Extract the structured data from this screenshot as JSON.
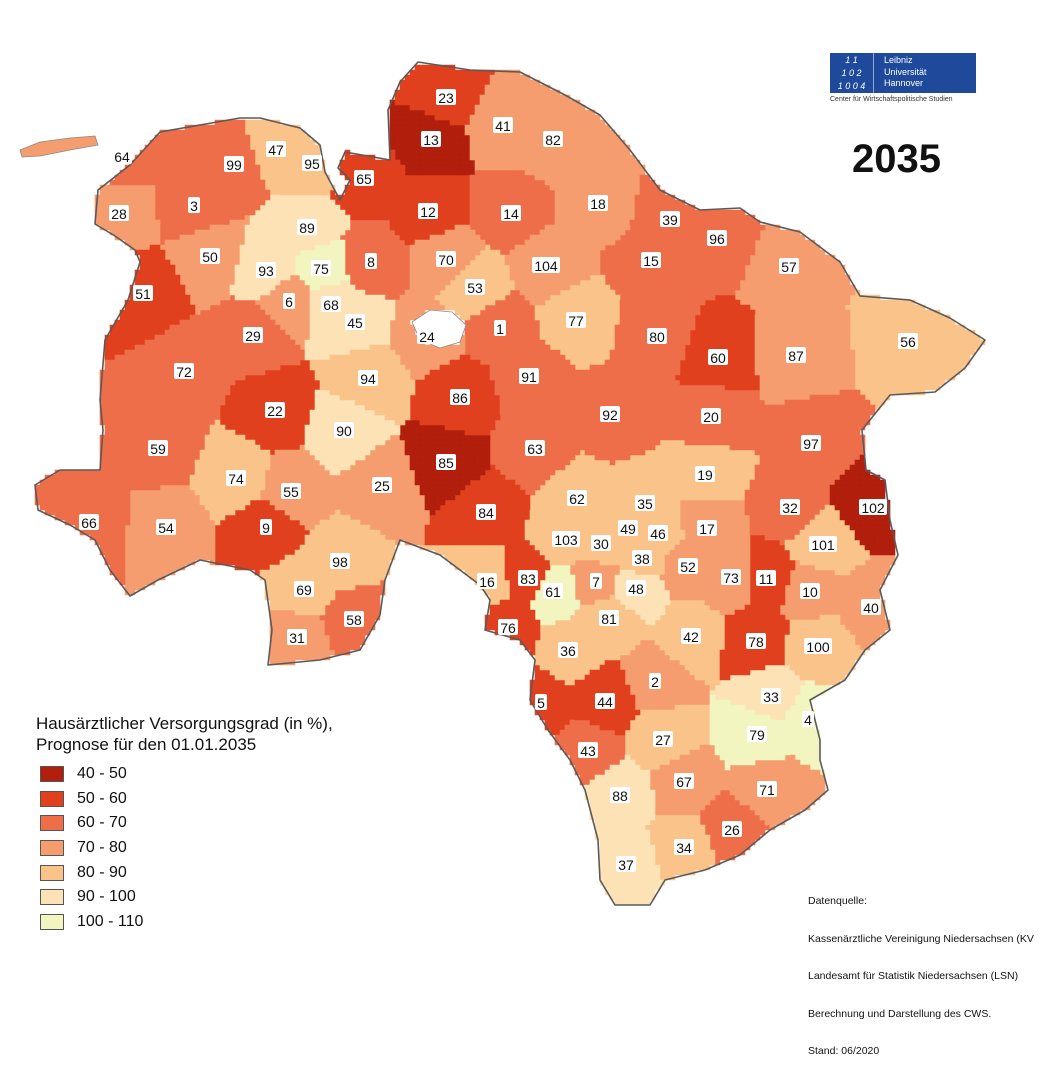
{
  "year_title": "2035",
  "legend": {
    "title_line1": "Hausärztlicher Versorgungsgrad (in %),",
    "title_line2": "Prognose für den 01.01.2035",
    "classes": [
      {
        "label": "40 - 50",
        "color": "#b21f0c"
      },
      {
        "label": "50 - 60",
        "color": "#e0401e"
      },
      {
        "label": "60 - 70",
        "color": "#ee6e4a"
      },
      {
        "label": "70 - 80",
        "color": "#f59d6e"
      },
      {
        "label": "80 - 90",
        "color": "#f9c38a"
      },
      {
        "label": "90 - 100",
        "color": "#fde2b6"
      },
      {
        "label": "100 - 110",
        "color": "#f2f5bf"
      }
    ]
  },
  "source": {
    "line1": "Datenquelle:",
    "line2": "Kassenärztliche Vereinigung Niedersachsen (KV",
    "line3": "Landesamt für Statistik Niedersachsen (LSN)",
    "line4": "Berechnung und Darstellung des CWS.",
    "line5": "Stand: 06/2020"
  },
  "logo": {
    "mark_line1": "1 1",
    "mark_line2": "1 0 2",
    "mark_line3": "1 0 0 4",
    "text_line1": "Leibniz",
    "text_line2": "Universität",
    "text_line3": "Hannover",
    "caption": "Center für Wirtschaftspolitische Studien"
  },
  "regions": [
    {
      "id": "1",
      "cls": 2
    },
    {
      "id": "2",
      "cls": 3
    },
    {
      "id": "3",
      "cls": 2
    },
    {
      "id": "4",
      "cls": 6
    },
    {
      "id": "5",
      "cls": 1
    },
    {
      "id": "6",
      "cls": 3
    },
    {
      "id": "7",
      "cls": 3
    },
    {
      "id": "8",
      "cls": 2
    },
    {
      "id": "9",
      "cls": 1
    },
    {
      "id": "10",
      "cls": 3
    },
    {
      "id": "11",
      "cls": 1
    },
    {
      "id": "12",
      "cls": 1
    },
    {
      "id": "13",
      "cls": 0
    },
    {
      "id": "14",
      "cls": 2
    },
    {
      "id": "15",
      "cls": 2
    },
    {
      "id": "16",
      "cls": 4
    },
    {
      "id": "17",
      "cls": 3
    },
    {
      "id": "18",
      "cls": 3
    },
    {
      "id": "19",
      "cls": 4
    },
    {
      "id": "20",
      "cls": 2
    },
    {
      "id": "22",
      "cls": 1
    },
    {
      "id": "23",
      "cls": 1
    },
    {
      "id": "24",
      "cls": 3
    },
    {
      "id": "25",
      "cls": 3
    },
    {
      "id": "26",
      "cls": 2
    },
    {
      "id": "27",
      "cls": 4
    },
    {
      "id": "28",
      "cls": 3
    },
    {
      "id": "29",
      "cls": 2
    },
    {
      "id": "30",
      "cls": 4
    },
    {
      "id": "31",
      "cls": 3
    },
    {
      "id": "32",
      "cls": 2
    },
    {
      "id": "33",
      "cls": 5
    },
    {
      "id": "34",
      "cls": 4
    },
    {
      "id": "35",
      "cls": 4
    },
    {
      "id": "36",
      "cls": 4
    },
    {
      "id": "37",
      "cls": 5
    },
    {
      "id": "38",
      "cls": 4
    },
    {
      "id": "39",
      "cls": 2
    },
    {
      "id": "40",
      "cls": 3
    },
    {
      "id": "41",
      "cls": 3
    },
    {
      "id": "42",
      "cls": 4
    },
    {
      "id": "43",
      "cls": 2
    },
    {
      "id": "44",
      "cls": 1
    },
    {
      "id": "45",
      "cls": 5
    },
    {
      "id": "46",
      "cls": 4
    },
    {
      "id": "47",
      "cls": 4
    },
    {
      "id": "48",
      "cls": 5
    },
    {
      "id": "49",
      "cls": 4
    },
    {
      "id": "50",
      "cls": 3
    },
    {
      "id": "51",
      "cls": 1
    },
    {
      "id": "52",
      "cls": 3
    },
    {
      "id": "53",
      "cls": 4
    },
    {
      "id": "54",
      "cls": 3
    },
    {
      "id": "55",
      "cls": 3
    },
    {
      "id": "56",
      "cls": 4
    },
    {
      "id": "57",
      "cls": 3
    },
    {
      "id": "58",
      "cls": 2
    },
    {
      "id": "59",
      "cls": 2
    },
    {
      "id": "60",
      "cls": 1
    },
    {
      "id": "61",
      "cls": 6
    },
    {
      "id": "62",
      "cls": 4
    },
    {
      "id": "63",
      "cls": 2
    },
    {
      "id": "64",
      "cls": 2
    },
    {
      "id": "65",
      "cls": 1
    },
    {
      "id": "66",
      "cls": 2
    },
    {
      "id": "67",
      "cls": 3
    },
    {
      "id": "68",
      "cls": 5
    },
    {
      "id": "69",
      "cls": 4
    },
    {
      "id": "70",
      "cls": 3
    },
    {
      "id": "71",
      "cls": 3
    },
    {
      "id": "72",
      "cls": 2
    },
    {
      "id": "73",
      "cls": 3
    },
    {
      "id": "74",
      "cls": 4
    },
    {
      "id": "75",
      "cls": 6
    },
    {
      "id": "76",
      "cls": 1
    },
    {
      "id": "77",
      "cls": 4
    },
    {
      "id": "78",
      "cls": 1
    },
    {
      "id": "79",
      "cls": 6
    },
    {
      "id": "80",
      "cls": 2
    },
    {
      "id": "81",
      "cls": 4
    },
    {
      "id": "82",
      "cls": 3
    },
    {
      "id": "83",
      "cls": 1
    },
    {
      "id": "84",
      "cls": 1
    },
    {
      "id": "85",
      "cls": 0
    },
    {
      "id": "86",
      "cls": 1
    },
    {
      "id": "87",
      "cls": 3
    },
    {
      "id": "88",
      "cls": 5
    },
    {
      "id": "89",
      "cls": 5
    },
    {
      "id": "90",
      "cls": 5
    },
    {
      "id": "91",
      "cls": 2
    },
    {
      "id": "92",
      "cls": 2
    },
    {
      "id": "93",
      "cls": 5
    },
    {
      "id": "94",
      "cls": 4
    },
    {
      "id": "95",
      "cls": 4
    },
    {
      "id": "96",
      "cls": 2
    },
    {
      "id": "97",
      "cls": 2
    },
    {
      "id": "98",
      "cls": 4
    },
    {
      "id": "99",
      "cls": 2
    },
    {
      "id": "100",
      "cls": 4
    },
    {
      "id": "101",
      "cls": 4
    },
    {
      "id": "102",
      "cls": 0
    },
    {
      "id": "103",
      "cls": 4
    },
    {
      "id": "104",
      "cls": 3
    }
  ]
}
